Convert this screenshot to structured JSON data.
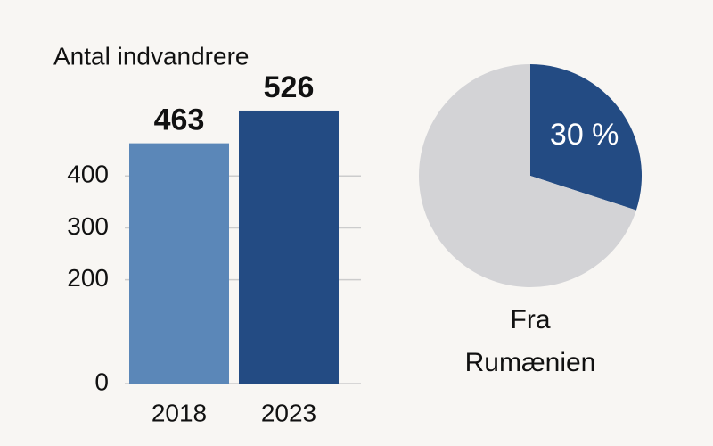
{
  "chart_data": [
    {
      "type": "bar",
      "y_label": "Antal indvandrere",
      "categories": [
        "2018",
        "2023"
      ],
      "values": [
        463,
        526
      ],
      "colors": [
        "#5b87b8",
        "#234b83"
      ],
      "ylim": [
        0,
        550
      ],
      "yticks": [
        0,
        200,
        300,
        400
      ],
      "grid": true
    },
    {
      "type": "pie",
      "categories": [
        "Fra Rumænien",
        null
      ],
      "values": [
        30,
        70
      ],
      "value_labels": [
        "30 %",
        null
      ],
      "colors": [
        "#234b83",
        "#d3d3d6"
      ]
    }
  ]
}
